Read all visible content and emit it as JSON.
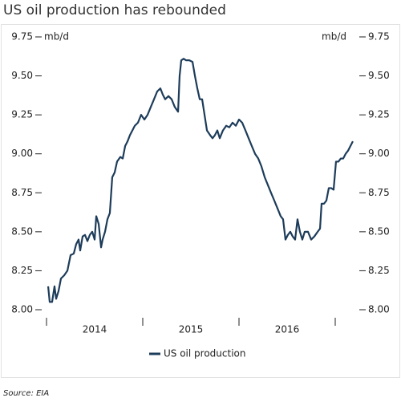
{
  "chart_data": {
    "type": "line",
    "title": "US oil production has rebounded",
    "y_unit": "mb/d",
    "source": "Source: EIA",
    "xlim": [
      2013.975,
      2017.225
    ],
    "xticks": [
      2014,
      2015,
      2016,
      2017
    ],
    "xlabels": [
      "2014",
      "2015",
      "2016"
    ],
    "ylim": [
      8,
      9.75
    ],
    "yticks": [
      {
        "value": 8,
        "label": "8.00"
      },
      {
        "value": 8.25,
        "label": "8.25"
      },
      {
        "value": 8.5,
        "label": "8.50"
      },
      {
        "value": 8.75,
        "label": "8.75"
      },
      {
        "value": 9,
        "label": "9.00"
      },
      {
        "value": 9.25,
        "label": "9.25"
      },
      {
        "value": 9.5,
        "label": "9.50"
      },
      {
        "value": 9.75,
        "label": "9.75"
      }
    ],
    "y2lim": [
      8,
      9.75
    ],
    "y2ticks": [
      {
        "value": 8,
        "label": "8.00"
      },
      {
        "value": 8.25,
        "label": "8.25"
      },
      {
        "value": 8.5,
        "label": "8.50"
      },
      {
        "value": 8.75,
        "label": "8.75"
      },
      {
        "value": 9,
        "label": "9.00"
      },
      {
        "value": 9.25,
        "label": "9.25"
      },
      {
        "value": 9.5,
        "label": "9.50"
      },
      {
        "value": 9.75,
        "label": "9.75"
      }
    ],
    "grid": false,
    "legend": "bottom",
    "x": [
      2014.017,
      2014.033,
      2014.058,
      2014.083,
      2014.1,
      2014.125,
      2014.15,
      2014.183,
      2014.217,
      2014.25,
      2014.283,
      2014.308,
      2014.333,
      2014.35,
      2014.375,
      2014.4,
      2014.425,
      2014.45,
      2014.475,
      2014.5,
      2014.517,
      2014.542,
      2014.567,
      2014.583,
      2014.608,
      2014.633,
      2014.658,
      2014.683,
      2014.708,
      2014.733,
      2014.767,
      2014.792,
      2014.817,
      2014.842,
      2014.867,
      2014.892,
      2014.917,
      2014.95,
      2014.983,
      2015.017,
      2015.05,
      2015.083,
      2015.117,
      2015.15,
      2015.183,
      2015.208,
      2015.233,
      2015.267,
      2015.3,
      2015.333,
      2015.367,
      2015.383,
      2015.4,
      2015.425,
      2015.45,
      2015.483,
      2015.517,
      2015.542,
      2015.567,
      2015.592,
      2015.617,
      2015.642,
      2015.667,
      2015.7,
      2015.725,
      2015.75,
      2015.775,
      2015.8,
      2015.833,
      2015.867,
      2015.9,
      2015.933,
      2015.967,
      2016.0,
      2016.033,
      2016.067,
      2016.1,
      2016.133,
      2016.167,
      2016.2,
      2016.233,
      2016.267,
      2016.3,
      2016.333,
      2016.367,
      2016.4,
      2016.433,
      2016.458,
      2016.483,
      2016.508,
      2016.533,
      2016.558,
      2016.583,
      2016.608,
      2016.633,
      2016.658,
      2016.683,
      2016.717,
      2016.75,
      2016.783,
      2016.817,
      2016.842,
      2016.858,
      2016.883,
      2016.908,
      2016.933,
      2016.958,
      2016.983,
      2017.008,
      2017.033,
      2017.058,
      2017.083,
      2017.108,
      2017.133,
      2017.158,
      2017.183
    ],
    "series": [
      {
        "name": "US oil production",
        "color": "#1d3c5a",
        "values": [
          8.15,
          8.05,
          8.05,
          8.15,
          8.07,
          8.12,
          8.2,
          8.22,
          8.25,
          8.35,
          8.36,
          8.42,
          8.45,
          8.38,
          8.47,
          8.48,
          8.44,
          8.48,
          8.5,
          8.45,
          8.6,
          8.55,
          8.4,
          8.45,
          8.5,
          8.58,
          8.62,
          8.85,
          8.88,
          8.95,
          8.98,
          8.97,
          9.05,
          9.08,
          9.12,
          9.15,
          9.18,
          9.2,
          9.25,
          9.22,
          9.25,
          9.3,
          9.35,
          9.4,
          9.42,
          9.38,
          9.35,
          9.37,
          9.35,
          9.3,
          9.27,
          9.5,
          9.6,
          9.61,
          9.6,
          9.6,
          9.59,
          9.5,
          9.42,
          9.35,
          9.35,
          9.25,
          9.15,
          9.12,
          9.1,
          9.12,
          9.15,
          9.1,
          9.15,
          9.18,
          9.17,
          9.2,
          9.18,
          9.22,
          9.2,
          9.15,
          9.1,
          9.05,
          9.0,
          8.97,
          8.92,
          8.85,
          8.8,
          8.75,
          8.7,
          8.65,
          8.6,
          8.58,
          8.45,
          8.48,
          8.5,
          8.47,
          8.45,
          8.58,
          8.5,
          8.45,
          8.5,
          8.5,
          8.45,
          8.47,
          8.5,
          8.52,
          8.68,
          8.68,
          8.7,
          8.78,
          8.78,
          8.77,
          8.95,
          8.95,
          8.97,
          8.97,
          9.0,
          9.02,
          9.05,
          9.08
        ]
      }
    ]
  }
}
